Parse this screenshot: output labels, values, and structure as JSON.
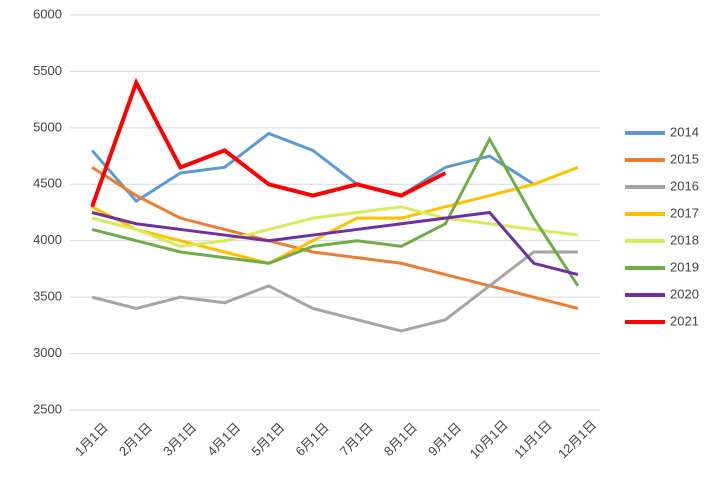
{
  "chart_data": {
    "type": "line",
    "categories": [
      "1月1日",
      "2月1日",
      "3月1日",
      "4月1日",
      "5月1日",
      "6月1日",
      "7月1日",
      "8月1日",
      "9月1日",
      "10月1日",
      "11月1日",
      "12月1日"
    ],
    "series": [
      {
        "name": "2014",
        "color": "#5b9bd5",
        "values": [
          4800,
          4350,
          4600,
          4650,
          4950,
          4800,
          4500,
          4400,
          4650,
          4750,
          4500,
          null
        ]
      },
      {
        "name": "2015",
        "color": "#ed7d31",
        "values": [
          4650,
          4400,
          4200,
          4100,
          4000,
          3900,
          3850,
          3800,
          3700,
          3600,
          3500,
          3400
        ]
      },
      {
        "name": "2016",
        "color": "#a5a5a5",
        "values": [
          3500,
          3400,
          3500,
          3450,
          3600,
          3400,
          3300,
          3200,
          3300,
          3600,
          3900,
          3900
        ]
      },
      {
        "name": "2017",
        "color": "#ffc000",
        "values": [
          4300,
          4100,
          4000,
          3900,
          3800,
          4000,
          4200,
          4200,
          4300,
          4400,
          4500,
          4650
        ]
      },
      {
        "name": "2018",
        "color": "#d9ea5a",
        "values": [
          4200,
          4100,
          3950,
          4000,
          4100,
          4200,
          4250,
          4300,
          4200,
          4150,
          4100,
          4050
        ]
      },
      {
        "name": "2019",
        "color": "#70ad47",
        "values": [
          4100,
          4000,
          3900,
          3850,
          3800,
          3950,
          4000,
          3950,
          4150,
          4900,
          4200,
          3600
        ]
      },
      {
        "name": "2020",
        "color": "#7030a0",
        "values": [
          4250,
          4150,
          4100,
          4050,
          4000,
          4050,
          4100,
          4150,
          4200,
          4250,
          3800,
          3700
        ]
      },
      {
        "name": "2021",
        "color": "#ff0000",
        "values": [
          4300,
          5400,
          4650,
          4800,
          4500,
          4400,
          4500,
          4400,
          4600,
          null,
          null,
          null
        ]
      }
    ],
    "ylim": [
      2500,
      6000
    ],
    "yticks": [
      2500,
      3000,
      3500,
      4000,
      4500,
      5000,
      5500,
      6000
    ],
    "grid": true
  }
}
